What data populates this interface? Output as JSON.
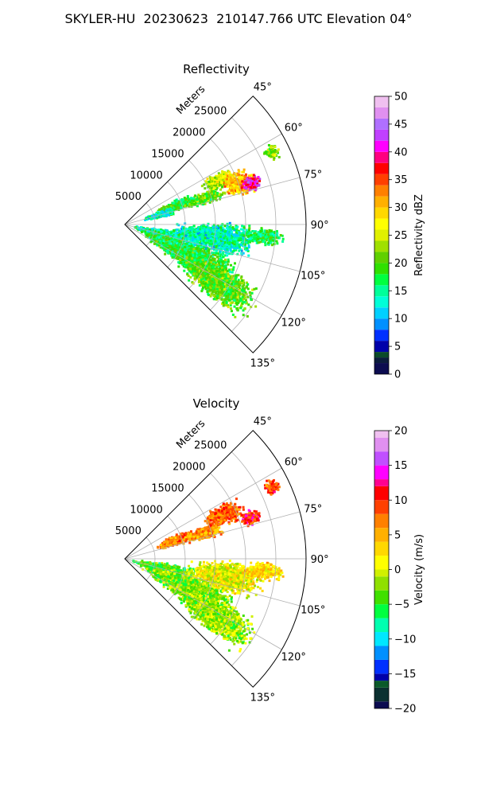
{
  "figure_title": "SKYLER-HU  20230623  210147.766 UTC Elevation 04°",
  "colors": {
    "grid": "#b0b0b0",
    "frame": "#000000",
    "background": "#ffffff"
  },
  "chart_data": [
    {
      "type": "heatmap",
      "projection": "polar-sector",
      "title": "Reflectivity",
      "range_label": "Meters",
      "azimuth_range_deg": [
        45,
        135
      ],
      "range_lim": [
        0,
        30000
      ],
      "grid": true,
      "azimuth_ticks": [
        "45°",
        "60°",
        "75°",
        "90°",
        "105°",
        "120°",
        "135°"
      ],
      "azimuth_tick_values": [
        45,
        60,
        75,
        90,
        105,
        120,
        135
      ],
      "range_ticks": [
        "5000",
        "10000",
        "15000",
        "20000",
        "25000"
      ],
      "range_tick_values": [
        5000,
        10000,
        15000,
        20000,
        25000
      ],
      "colorbar": {
        "label": "Reflectivity dBZ",
        "range": [
          0,
          50
        ],
        "ticks": [
          "0",
          "5",
          "10",
          "15",
          "20",
          "25",
          "30",
          "35",
          "40",
          "45",
          "50"
        ],
        "tick_values": [
          0,
          5,
          10,
          15,
          20,
          25,
          30,
          35,
          40,
          45,
          50
        ],
        "stops": [
          {
            "v": 0,
            "c": "#0c0c50"
          },
          {
            "v": 2,
            "c": "#0b1c3c"
          },
          {
            "v": 3,
            "c": "#0b4a2a"
          },
          {
            "v": 4,
            "c": "#0000aa"
          },
          {
            "v": 6,
            "c": "#0030ff"
          },
          {
            "v": 8,
            "c": "#0090ff"
          },
          {
            "v": 10,
            "c": "#00d0ff"
          },
          {
            "v": 12,
            "c": "#00ffd8"
          },
          {
            "v": 14,
            "c": "#00ff9a"
          },
          {
            "v": 16,
            "c": "#00ff40"
          },
          {
            "v": 18,
            "c": "#30e000"
          },
          {
            "v": 20,
            "c": "#60d000"
          },
          {
            "v": 22,
            "c": "#a0e000"
          },
          {
            "v": 24,
            "c": "#e0f000"
          },
          {
            "v": 26,
            "c": "#ffff00"
          },
          {
            "v": 28,
            "c": "#ffd800"
          },
          {
            "v": 30,
            "c": "#ffb000"
          },
          {
            "v": 32,
            "c": "#ff8000"
          },
          {
            "v": 34,
            "c": "#ff4000"
          },
          {
            "v": 36,
            "c": "#ff0000"
          },
          {
            "v": 38,
            "c": "#ff0080"
          },
          {
            "v": 40,
            "c": "#ff00ff"
          },
          {
            "v": 42,
            "c": "#c040ff"
          },
          {
            "v": 44,
            "c": "#b070ff"
          },
          {
            "v": 46,
            "c": "#e090f0"
          },
          {
            "v": 48,
            "c": "#f0c0f0"
          },
          {
            "v": 50,
            "c": "#ffe8ff"
          }
        ]
      },
      "echoes": [
        {
          "az": 70,
          "r": 9000,
          "az_w": 6,
          "r_w": 4000,
          "value": 18
        },
        {
          "az": 72,
          "r": 14000,
          "az_w": 5,
          "r_w": 4000,
          "value": 20
        },
        {
          "az": 65,
          "r": 17000,
          "az_w": 5,
          "r_w": 3000,
          "value": 24
        },
        {
          "az": 70,
          "r": 20000,
          "az_w": 7,
          "r_w": 3000,
          "value": 30
        },
        {
          "az": 72,
          "r": 22000,
          "az_w": 4,
          "r_w": 2000,
          "value": 40
        },
        {
          "az": 75,
          "r": 6000,
          "az_w": 5,
          "r_w": 3000,
          "value": 14
        },
        {
          "az": 64,
          "r": 27000,
          "az_w": 3,
          "r_w": 1500,
          "value": 22
        },
        {
          "az": 106,
          "r": 7000,
          "az_w": 10,
          "r_w": 6000,
          "value": 15
        },
        {
          "az": 115,
          "r": 12000,
          "az_w": 12,
          "r_w": 9000,
          "value": 18
        },
        {
          "az": 122,
          "r": 18000,
          "az_w": 10,
          "r_w": 8000,
          "value": 20
        },
        {
          "az": 98,
          "r": 15000,
          "az_w": 10,
          "r_w": 8000,
          "value": 14
        },
        {
          "az": 95,
          "r": 23000,
          "az_w": 4,
          "r_w": 4000,
          "value": 17
        }
      ]
    },
    {
      "type": "heatmap",
      "projection": "polar-sector",
      "title": "Velocity",
      "range_label": "Meters",
      "azimuth_range_deg": [
        45,
        135
      ],
      "range_lim": [
        0,
        30000
      ],
      "grid": true,
      "azimuth_ticks": [
        "45°",
        "60°",
        "75°",
        "90°",
        "105°",
        "120°",
        "135°"
      ],
      "azimuth_tick_values": [
        45,
        60,
        75,
        90,
        105,
        120,
        135
      ],
      "range_ticks": [
        "5000",
        "10000",
        "15000",
        "20000",
        "25000"
      ],
      "range_tick_values": [
        5000,
        10000,
        15000,
        20000,
        25000
      ],
      "colorbar": {
        "label": "Velocity (m/s)",
        "range": [
          -20,
          20
        ],
        "ticks": [
          "−20",
          "−15",
          "−10",
          "−5",
          "0",
          "5",
          "10",
          "15",
          "20"
        ],
        "tick_values": [
          -20,
          -15,
          -10,
          -5,
          0,
          5,
          10,
          15,
          20
        ],
        "stops": [
          {
            "v": -20,
            "c": "#0c0c50"
          },
          {
            "v": -19,
            "c": "#0b3030"
          },
          {
            "v": -17,
            "c": "#0b5a2a"
          },
          {
            "v": -16,
            "c": "#0000aa"
          },
          {
            "v": -15,
            "c": "#0030ff"
          },
          {
            "v": -13,
            "c": "#0090ff"
          },
          {
            "v": -11,
            "c": "#00e8ff"
          },
          {
            "v": -9,
            "c": "#00ffb0"
          },
          {
            "v": -7,
            "c": "#00ff40"
          },
          {
            "v": -5,
            "c": "#40e000"
          },
          {
            "v": -3,
            "c": "#90e000"
          },
          {
            "v": -1,
            "c": "#d0f000"
          },
          {
            "v": 0,
            "c": "#ffff00"
          },
          {
            "v": 2,
            "c": "#ffd800"
          },
          {
            "v": 4,
            "c": "#ffb000"
          },
          {
            "v": 6,
            "c": "#ff8000"
          },
          {
            "v": 8,
            "c": "#ff4000"
          },
          {
            "v": 10,
            "c": "#ff0000"
          },
          {
            "v": 12,
            "c": "#ff0090"
          },
          {
            "v": 13,
            "c": "#ff00ff"
          },
          {
            "v": 15,
            "c": "#c050ff"
          },
          {
            "v": 17,
            "c": "#e090f0"
          },
          {
            "v": 19,
            "c": "#f0c0f0"
          },
          {
            "v": 20,
            "c": "#ffe8ff"
          }
        ]
      },
      "echoes": [
        {
          "az": 70,
          "r": 9000,
          "az_w": 6,
          "r_w": 4000,
          "value": 7
        },
        {
          "az": 72,
          "r": 14000,
          "az_w": 5,
          "r_w": 4000,
          "value": 6
        },
        {
          "az": 66,
          "r": 18000,
          "az_w": 6,
          "r_w": 4000,
          "value": 8
        },
        {
          "az": 72,
          "r": 22000,
          "az_w": 4,
          "r_w": 2000,
          "value": 10
        },
        {
          "az": 64,
          "r": 27000,
          "az_w": 3,
          "r_w": 1500,
          "value": 9
        },
        {
          "az": 106,
          "r": 7000,
          "az_w": 10,
          "r_w": 6000,
          "value": -4
        },
        {
          "az": 115,
          "r": 12000,
          "az_w": 12,
          "r_w": 9000,
          "value": -3
        },
        {
          "az": 122,
          "r": 18000,
          "az_w": 10,
          "r_w": 8000,
          "value": -2
        },
        {
          "az": 100,
          "r": 17000,
          "az_w": 10,
          "r_w": 7000,
          "value": 1
        },
        {
          "az": 95,
          "r": 23000,
          "az_w": 4,
          "r_w": 4000,
          "value": 3
        }
      ]
    }
  ]
}
